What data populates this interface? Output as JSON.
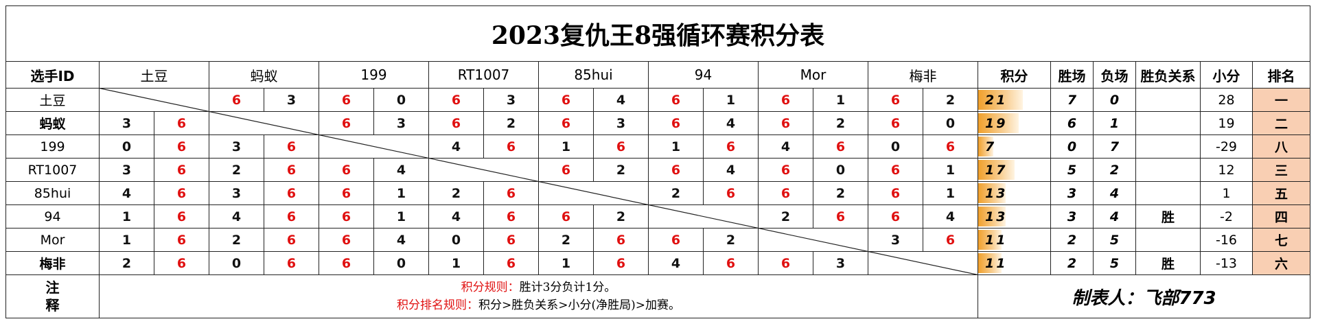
{
  "title": "2023复仇王8强循环赛积分表",
  "header": {
    "player_col": "选手ID",
    "points": "积分",
    "wins": "胜场",
    "losses": "负场",
    "relation": "胜负关系",
    "small": "小分",
    "rank": "排名"
  },
  "players": [
    "土豆",
    "蚂蚁",
    "199",
    "RT1007",
    "85hui",
    "94",
    "Mor",
    "梅非"
  ],
  "rows": [
    {
      "name": "土豆",
      "scores": [
        null,
        [
          "6",
          "3"
        ],
        [
          "6",
          "0"
        ],
        [
          "6",
          "3"
        ],
        [
          "6",
          "4"
        ],
        [
          "6",
          "1"
        ],
        [
          "6",
          "1"
        ],
        [
          "6",
          "2"
        ]
      ],
      "points": 21,
      "points_text": "21",
      "wins": "7",
      "losses": "0",
      "relation": "",
      "small": "28",
      "rank": "一"
    },
    {
      "name": "蚂蚁",
      "scores": [
        [
          "3",
          "6"
        ],
        null,
        [
          "6",
          "3"
        ],
        [
          "6",
          "2"
        ],
        [
          "6",
          "3"
        ],
        [
          "6",
          "4"
        ],
        [
          "6",
          "2"
        ],
        [
          "6",
          "0"
        ]
      ],
      "points": 19,
      "points_text": "19",
      "wins": "6",
      "losses": "1",
      "relation": "",
      "small": "19",
      "rank": "二"
    },
    {
      "name": "199",
      "scores": [
        [
          "0",
          "6"
        ],
        [
          "3",
          "6"
        ],
        null,
        [
          "4",
          "6"
        ],
        [
          "1",
          "6"
        ],
        [
          "1",
          "6"
        ],
        [
          "4",
          "6"
        ],
        [
          "0",
          "6"
        ]
      ],
      "points": 7,
      "points_text": "7",
      "wins": "0",
      "losses": "7",
      "relation": "",
      "small": "-29",
      "rank": "八"
    },
    {
      "name": "RT1007",
      "scores": [
        [
          "3",
          "6"
        ],
        [
          "2",
          "6"
        ],
        [
          "6",
          "4"
        ],
        null,
        [
          "6",
          "2"
        ],
        [
          "6",
          "4"
        ],
        [
          "6",
          "0"
        ],
        [
          "6",
          "1"
        ]
      ],
      "points": 17,
      "points_text": "17",
      "wins": "5",
      "losses": "2",
      "relation": "",
      "small": "12",
      "rank": "三"
    },
    {
      "name": "85hui",
      "scores": [
        [
          "4",
          "6"
        ],
        [
          "3",
          "6"
        ],
        [
          "6",
          "1"
        ],
        [
          "2",
          "6"
        ],
        null,
        [
          "2",
          "6"
        ],
        [
          "6",
          "2"
        ],
        [
          "6",
          "1"
        ]
      ],
      "points": 13,
      "points_text": "13",
      "wins": "3",
      "losses": "4",
      "relation": "",
      "small": "1",
      "rank": "五"
    },
    {
      "name": "94",
      "scores": [
        [
          "1",
          "6"
        ],
        [
          "4",
          "6"
        ],
        [
          "6",
          "1"
        ],
        [
          "4",
          "6"
        ],
        [
          "6",
          "2"
        ],
        null,
        [
          "2",
          "6"
        ],
        [
          "6",
          "4"
        ]
      ],
      "points": 13,
      "points_text": "13",
      "wins": "3",
      "losses": "4",
      "relation": "胜",
      "small": "-2",
      "rank": "四"
    },
    {
      "name": "Mor",
      "scores": [
        [
          "1",
          "6"
        ],
        [
          "2",
          "6"
        ],
        [
          "6",
          "4"
        ],
        [
          "0",
          "6"
        ],
        [
          "2",
          "6"
        ],
        [
          "6",
          "2"
        ],
        null,
        [
          "3",
          "6"
        ]
      ],
      "points": 11,
      "points_text": "11",
      "wins": "2",
      "losses": "5",
      "relation": "",
      "small": "-16",
      "rank": "七"
    },
    {
      "name": "梅非",
      "scores": [
        [
          "2",
          "6"
        ],
        [
          "0",
          "6"
        ],
        [
          "6",
          "0"
        ],
        [
          "1",
          "6"
        ],
        [
          "1",
          "6"
        ],
        [
          "4",
          "6"
        ],
        [
          "6",
          "3"
        ],
        null
      ],
      "points": 11,
      "points_text": "11",
      "wins": "2",
      "losses": "5",
      "relation": "胜",
      "small": "-13",
      "rank": "六"
    }
  ],
  "points_bar": {
    "max": 21
  },
  "footer": {
    "note_label_1": "注",
    "note_label_2": "释",
    "rules_1_label": "积分规则：",
    "rules_1_text": "胜计3分负计1分。",
    "rules_2_label": "积分排名规则：",
    "rules_2_text": "积分>胜负关系>小分(净胜局)>加赛。",
    "credit": "制表人：飞部773"
  },
  "colors": {
    "winner_score": "#e01010",
    "loser_score": "#111111",
    "rank_bg": "#f9cfb3",
    "bar_start": "#f0a02c",
    "bar_end": "#fff4e2"
  }
}
